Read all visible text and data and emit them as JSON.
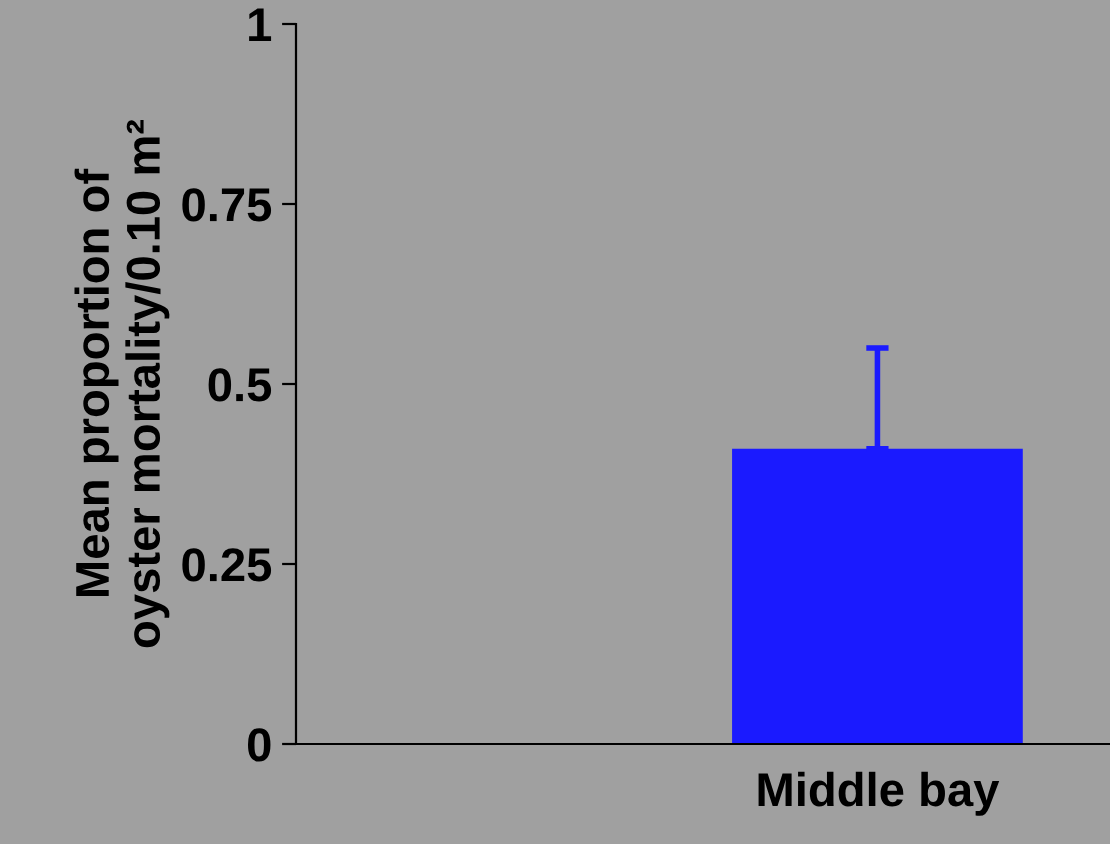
{
  "chart_data": {
    "type": "bar",
    "ylabel": "Mean proportion of\noyster mortality/0.10 m²",
    "categories": [
      null,
      "Middle bay"
    ],
    "values": [
      null,
      0.41
    ],
    "errors": [
      null,
      [
        0.41,
        0.55
      ]
    ],
    "color": "#1a1aff",
    "ylim": [
      0,
      1
    ],
    "yticks": [
      0,
      0.25,
      0.5,
      0.75,
      1
    ],
    "grid": false
  }
}
